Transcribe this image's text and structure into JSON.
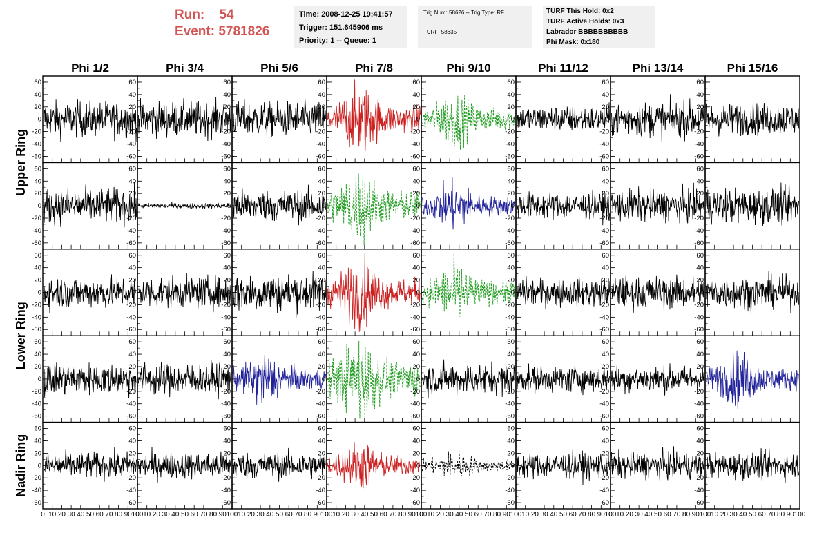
{
  "header": {
    "run_label": "Run:",
    "run_value": "54",
    "event_label": "Event:",
    "event_value": "5781826",
    "timing": [
      "Time: 2008-12-25 19:41:57",
      "Trigger: 151.645906 ms",
      "Priority: 1 -- Queue: 1"
    ],
    "trigger": [
      "Trig Num: 58626 -- Trig Type: RF",
      "TURF: 58635"
    ],
    "turf": [
      "TURF This Hold: 0x2",
      "TURF Active Holds: 0x3",
      "Labrador BBBBBBBBBB",
      "Phi Mask: 0x180"
    ]
  },
  "chart_data": {
    "type": "line",
    "columns": [
      "Phi 1/2",
      "Phi 3/4",
      "Phi 5/6",
      "Phi 7/8",
      "Phi 9/10",
      "Phi 11/12",
      "Phi 13/14",
      "Phi 15/16"
    ],
    "ring_labels": [
      "Upper Ring",
      "Lower Ring",
      "Nadir Ring"
    ],
    "xlim": [
      0,
      100
    ],
    "ylim": [
      -70,
      70
    ],
    "x_ticks": [
      0,
      10,
      20,
      30,
      40,
      50,
      60,
      70,
      80,
      90,
      100
    ],
    "y_ticks": [
      -60,
      -40,
      -20,
      0,
      20,
      40,
      60
    ],
    "colors": {
      "black": "#000000",
      "red": "#cc2222",
      "green": "#1a9a1a",
      "blue": "#22239a"
    },
    "panels": [
      [
        "black",
        "black",
        "black",
        "red",
        "green-dashed",
        "black",
        "black",
        "black"
      ],
      [
        "black",
        "black",
        "black",
        "green-dashed",
        "blue",
        "black",
        "black",
        "black"
      ],
      [
        "black",
        "black",
        "black",
        "red",
        "green-dashed",
        "black",
        "black",
        "black"
      ],
      [
        "black",
        "black",
        "blue",
        "green-dashed",
        "black",
        "black",
        "black",
        "blue"
      ],
      [
        "black",
        "black",
        "black",
        "red",
        "black-dashed",
        "black",
        "black",
        "black"
      ]
    ],
    "amplitude": [
      [
        20,
        20,
        20,
        28,
        22,
        15,
        20,
        18
      ],
      [
        20,
        3,
        18,
        30,
        20,
        15,
        18,
        20
      ],
      [
        18,
        18,
        22,
        28,
        24,
        16,
        18,
        18
      ],
      [
        18,
        18,
        22,
        35,
        18,
        15,
        15,
        22
      ],
      [
        15,
        15,
        15,
        20,
        12,
        15,
        15,
        15
      ]
    ]
  }
}
